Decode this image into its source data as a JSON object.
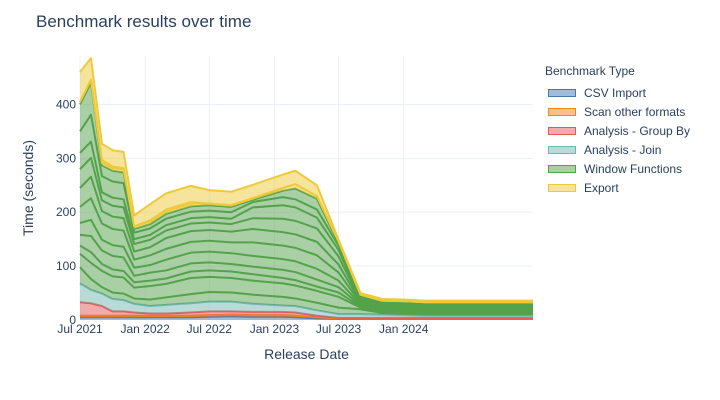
{
  "chart_data": {
    "type": "area",
    "stacked": true,
    "title": "Benchmark results over time",
    "xlabel": "Release Date",
    "ylabel": "Time (seconds)",
    "xlim": [
      "2021-07-01",
      "2024-12-31"
    ],
    "ylim": [
      0,
      490
    ],
    "x_ticks": [
      "Jul 2021",
      "Jan 2022",
      "Jul 2022",
      "Jan 2023",
      "Jul 2023",
      "Jan 2024"
    ],
    "y_ticks": [
      0,
      100,
      200,
      300,
      400
    ],
    "grid": true,
    "legend_title": "Benchmark Type",
    "legend_position": "right",
    "x": [
      "2021-07-01",
      "2021-08-01",
      "2021-09-01",
      "2021-10-01",
      "2021-11-01",
      "2021-12-01",
      "2022-01-15",
      "2022-03-01",
      "2022-05-10",
      "2022-07-01",
      "2022-09-01",
      "2022-11-01",
      "2023-01-25",
      "2023-03-01",
      "2023-05-01",
      "2023-07-01",
      "2023-09-01",
      "2023-11-01",
      "2024-01-01",
      "2024-03-01",
      "2024-05-01",
      "2024-07-01",
      "2024-09-01",
      "2024-11-01",
      "2024-12-31"
    ],
    "series": [
      {
        "name": "CSV Import",
        "color": "#4c78a8",
        "layers": [
          [
            5,
            5,
            5,
            5,
            5,
            5,
            5,
            5,
            5,
            6,
            7,
            6,
            6,
            5,
            3,
            2,
            2,
            2,
            2,
            2,
            2,
            2,
            2,
            2,
            2
          ]
        ]
      },
      {
        "name": "Scan other formats",
        "color": "#f58518",
        "layers": [
          [
            3,
            3,
            3,
            3,
            3,
            3,
            3,
            3,
            3,
            3,
            3,
            3,
            3,
            3,
            2,
            1,
            1,
            1,
            1,
            1,
            1,
            1,
            1,
            1,
            1
          ]
        ]
      },
      {
        "name": "Analysis - Group By",
        "color": "#e45756",
        "layers": [
          [
            25,
            23,
            18,
            8,
            8,
            6,
            4,
            4,
            6,
            7,
            6,
            6,
            6,
            6,
            3,
            1,
            1,
            1,
            1,
            1,
            1,
            1,
            1,
            1,
            1
          ]
        ]
      },
      {
        "name": "Analysis - Join",
        "color": "#72b7b2",
        "layers": [
          [
            35,
            25,
            23,
            23,
            21,
            16,
            14,
            16,
            17,
            18,
            18,
            15,
            12,
            12,
            10,
            7,
            7,
            6,
            5,
            4,
            4,
            4,
            4,
            4,
            4
          ]
        ]
      },
      {
        "name": "Window Functions",
        "color": "#54a24b",
        "layers": [
          [
            30,
            20,
            12,
            12,
            12,
            10,
            12,
            14,
            17,
            18,
            17,
            17,
            16,
            14,
            14,
            12,
            9,
            3,
            3,
            3,
            3,
            3,
            3,
            3,
            3
          ],
          [
            25,
            30,
            30,
            30,
            30,
            20,
            25,
            25,
            30,
            28,
            27,
            26,
            25,
            24,
            22,
            20,
            3,
            2,
            2,
            2,
            2,
            2,
            2,
            2,
            2
          ],
          [
            15,
            20,
            13,
            13,
            12,
            10,
            10,
            10,
            12,
            12,
            12,
            12,
            10,
            10,
            8,
            8,
            2,
            1,
            1,
            1,
            1,
            1,
            1,
            1,
            1
          ],
          [
            20,
            30,
            25,
            25,
            25,
            12,
            15,
            15,
            15,
            15,
            14,
            14,
            15,
            15,
            13,
            10,
            2,
            2,
            2,
            2,
            2,
            2,
            2,
            2,
            2
          ],
          [
            22,
            30,
            20,
            20,
            20,
            15,
            14,
            20,
            20,
            20,
            20,
            20,
            20,
            20,
            20,
            12,
            2,
            2,
            2,
            2,
            2,
            2,
            2,
            2,
            2
          ],
          [
            30,
            40,
            30,
            30,
            30,
            15,
            18,
            20,
            20,
            20,
            20,
            25,
            25,
            25,
            25,
            15,
            2,
            2,
            2,
            2,
            2,
            2,
            2,
            2,
            2
          ],
          [
            35,
            40,
            23,
            23,
            23,
            15,
            15,
            20,
            20,
            20,
            20,
            25,
            25,
            25,
            25,
            15,
            2,
            2,
            2,
            2,
            2,
            2,
            2,
            2,
            2
          ],
          [
            35,
            35,
            20,
            20,
            20,
            14,
            14,
            14,
            14,
            14,
            14,
            20,
            25,
            25,
            25,
            15,
            2,
            2,
            2,
            2,
            2,
            2,
            2,
            2,
            2
          ],
          [
            30,
            30,
            15,
            15,
            15,
            9,
            9,
            10,
            10,
            10,
            10,
            20,
            25,
            25,
            20,
            12,
            3,
            2,
            2,
            2,
            2,
            2,
            2,
            2,
            2
          ],
          [
            40,
            50,
            30,
            30,
            30,
            12,
            12,
            12,
            12,
            12,
            12,
            10,
            15,
            15,
            15,
            8,
            4,
            3,
            3,
            3,
            3,
            3,
            3,
            3,
            3
          ],
          [
            50,
            60,
            20,
            20,
            20,
            7,
            8,
            9,
            10,
            10,
            10,
            4,
            12,
            20,
            20,
            5,
            3,
            3,
            3,
            3,
            3,
            3,
            3,
            3,
            3
          ]
        ]
      },
      {
        "name": "Export",
        "color": "#eeca3b",
        "layers": [
          [
            5,
            5,
            5,
            5,
            5,
            5,
            5,
            5,
            5,
            3,
            3,
            3,
            5,
            8,
            5,
            3,
            2,
            2,
            2,
            1,
            1,
            1,
            1,
            1,
            1
          ],
          [
            0,
            0,
            5,
            3,
            3,
            0,
            2,
            3,
            3,
            0,
            0,
            0,
            0,
            0,
            0,
            0,
            0,
            0,
            0,
            0,
            0,
            0,
            0,
            0,
            0
          ],
          [
            55,
            40,
            30,
            30,
            30,
            20,
            30,
            30,
            30,
            25,
            25,
            25,
            25,
            25,
            20,
            3,
            3,
            3,
            3,
            3,
            3,
            3,
            3,
            3,
            3
          ]
        ]
      }
    ]
  }
}
